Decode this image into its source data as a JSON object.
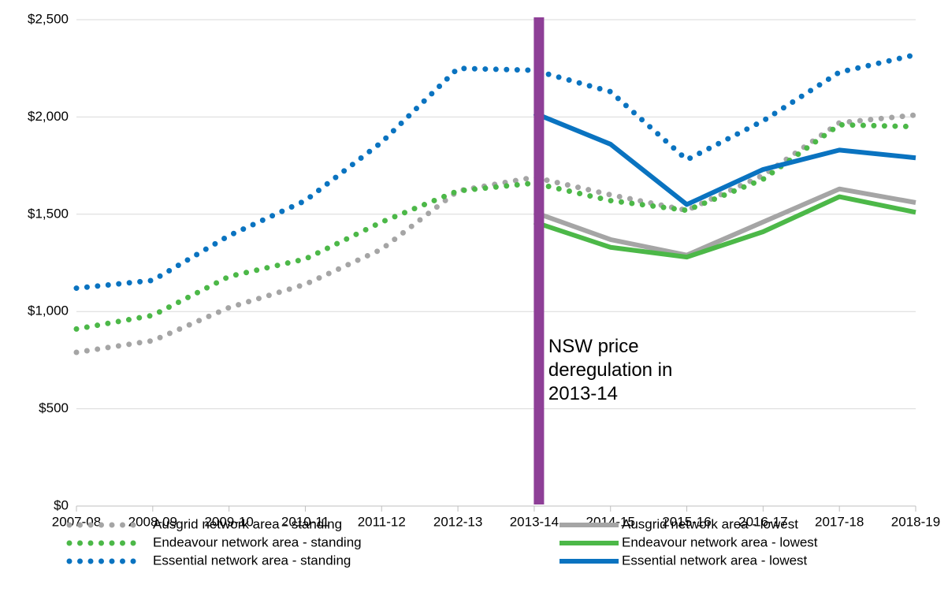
{
  "chart_data": {
    "type": "line",
    "categories": [
      "2007-08",
      "2008-09",
      "2009-10",
      "2010-11",
      "2011-12",
      "2012-13",
      "2013-14",
      "2014-15",
      "2015-16",
      "2016-17",
      "2017-18",
      "2018-19"
    ],
    "series": [
      {
        "name": "Ausgrid network area - standing",
        "color": "#a5a5a5",
        "style": "dotted",
        "values": [
          790,
          850,
          1020,
          1140,
          1320,
          1620,
          1690,
          1600,
          1520,
          1700,
          1970,
          2010
        ]
      },
      {
        "name": "Ausgrid network area - lowest",
        "color": "#a5a5a5",
        "style": "solid",
        "values": [
          null,
          null,
          null,
          null,
          null,
          null,
          1510,
          1370,
          1290,
          1460,
          1630,
          1560
        ]
      },
      {
        "name": "Endeavour network area - standing",
        "color": "#4cb848",
        "style": "dotted",
        "values": [
          910,
          980,
          1180,
          1270,
          1460,
          1620,
          1660,
          1570,
          1520,
          1680,
          1960,
          1950
        ]
      },
      {
        "name": "Endeavour network area - lowest",
        "color": "#4cb848",
        "style": "solid",
        "values": [
          null,
          null,
          null,
          null,
          null,
          null,
          1460,
          1330,
          1280,
          1410,
          1590,
          1510
        ]
      },
      {
        "name": "Essential network area - standing",
        "color": "#0a73c0",
        "style": "dotted",
        "values": [
          1120,
          1160,
          1390,
          1570,
          1870,
          2250,
          2240,
          2130,
          1780,
          1980,
          2230,
          2320
        ]
      },
      {
        "name": "Essential network area - lowest",
        "color": "#0a73c0",
        "style": "solid",
        "values": [
          null,
          null,
          null,
          null,
          null,
          null,
          2020,
          1860,
          1550,
          1730,
          1830,
          1790
        ]
      }
    ],
    "ylim": [
      0,
      2500
    ],
    "yticks": [
      {
        "value": 0,
        "label": "$0"
      },
      {
        "value": 500,
        "label": "$500"
      },
      {
        "value": 1000,
        "label": "$1,000"
      },
      {
        "value": 1500,
        "label": "$1,500"
      },
      {
        "value": 2000,
        "label": "$2,000"
      },
      {
        "value": 2500,
        "label": "$2,500"
      }
    ],
    "grid": true,
    "legend": "bottom",
    "annotation": {
      "text": [
        "NSW price",
        "deregulation in",
        "2013-14"
      ],
      "at": "2013-14",
      "color": "#8e3f97"
    }
  }
}
